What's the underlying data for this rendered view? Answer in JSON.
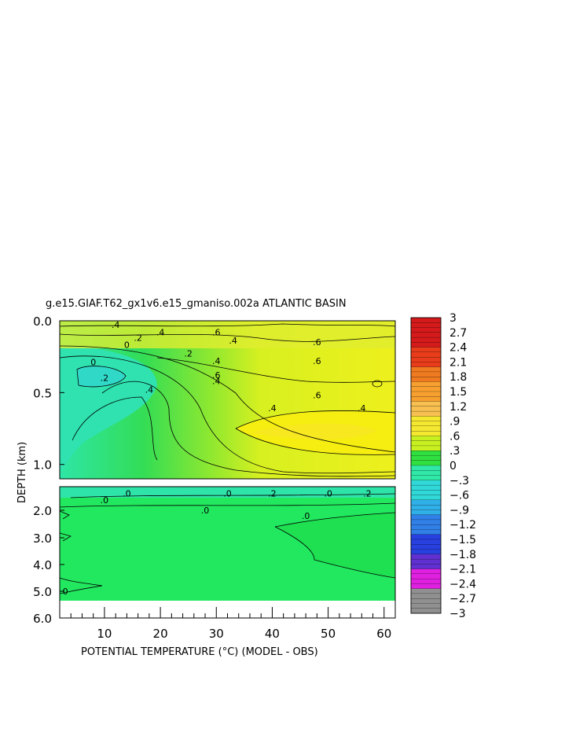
{
  "chart_data": {
    "type": "heatmap",
    "title": "g.e15.GIAF.T62_gx1v6.e15_gmaniso.002a ATLANTIC BASIN",
    "xlabel": "POTENTIAL TEMPERATURE (°C) (MODEL - OBS)",
    "ylabel": "DEPTH (km)",
    "xlim": [
      2,
      62
    ],
    "x_ticks": [
      "10",
      "20",
      "30",
      "40",
      "50",
      "60"
    ],
    "y_ticks_upper": [
      "0.0",
      "0.5",
      "1.0"
    ],
    "y_ticks_lower": [
      "2.0",
      "3.0",
      "4.0",
      "5.0",
      "6.0"
    ],
    "contour_labels": [
      {
        "text": ".4",
        "x": 12,
        "y": 0.05
      },
      {
        "text": ".4",
        "x": 20,
        "y": 0.1
      },
      {
        "text": ".6",
        "x": 30,
        "y": 0.1
      },
      {
        "text": ".2",
        "x": 16,
        "y": 0.14
      },
      {
        "text": ".4",
        "x": 33,
        "y": 0.16
      },
      {
        "text": ".6",
        "x": 48,
        "y": 0.17
      },
      {
        "text": "0",
        "x": 14,
        "y": 0.19
      },
      {
        "text": ".2",
        "x": 25,
        "y": 0.25
      },
      {
        "text": "0",
        "x": 8,
        "y": 0.31
      },
      {
        "text": ".4",
        "x": 30,
        "y": 0.3
      },
      {
        "text": ".6",
        "x": 48,
        "y": 0.3
      },
      {
        "text": ".2",
        "x": 10,
        "y": 0.42
      },
      {
        "text": ".4",
        "x": 30,
        "y": 0.44
      },
      {
        "text": ".6",
        "x": 30,
        "y": 0.4
      },
      {
        "text": ".4",
        "x": 18,
        "y": 0.5
      },
      {
        "text": ".6",
        "x": 48,
        "y": 0.54
      },
      {
        "text": ".4",
        "x": 40,
        "y": 0.63
      },
      {
        "text": ".4",
        "x": 56,
        "y": 0.63
      }
    ],
    "lower_contour_labels": [
      {
        "text": ".0",
        "x": 14,
        "y": 1.5
      },
      {
        "text": ".0",
        "x": 10,
        "y": 1.7
      },
      {
        "text": ".0",
        "x": 32,
        "y": 1.5
      },
      {
        "text": ".2",
        "x": 40,
        "y": 1.5
      },
      {
        "text": ".0",
        "x": 50,
        "y": 1.5
      },
      {
        "text": ".2",
        "x": 57,
        "y": 1.5
      },
      {
        "text": ".0",
        "x": 28,
        "y": 2.0
      },
      {
        "text": ".0",
        "x": 46,
        "y": 2.2
      },
      {
        "text": "0",
        "x": 3,
        "y": 5.0
      }
    ],
    "colorbar": {
      "min": -3,
      "max": 3,
      "step": 0.1,
      "labels": [
        "3",
        "2.7",
        "2.4",
        "2.1",
        "1.8",
        "1.5",
        "1.2",
        ".9",
        ".6",
        ".3",
        "0",
        "-.3",
        "-.6",
        "-.9",
        "-1.2",
        "-1.5",
        "-1.8",
        "-2.1",
        "-2.4",
        "-2.7",
        "-3"
      ]
    },
    "grid": false,
    "legend": "colorbar-right"
  }
}
